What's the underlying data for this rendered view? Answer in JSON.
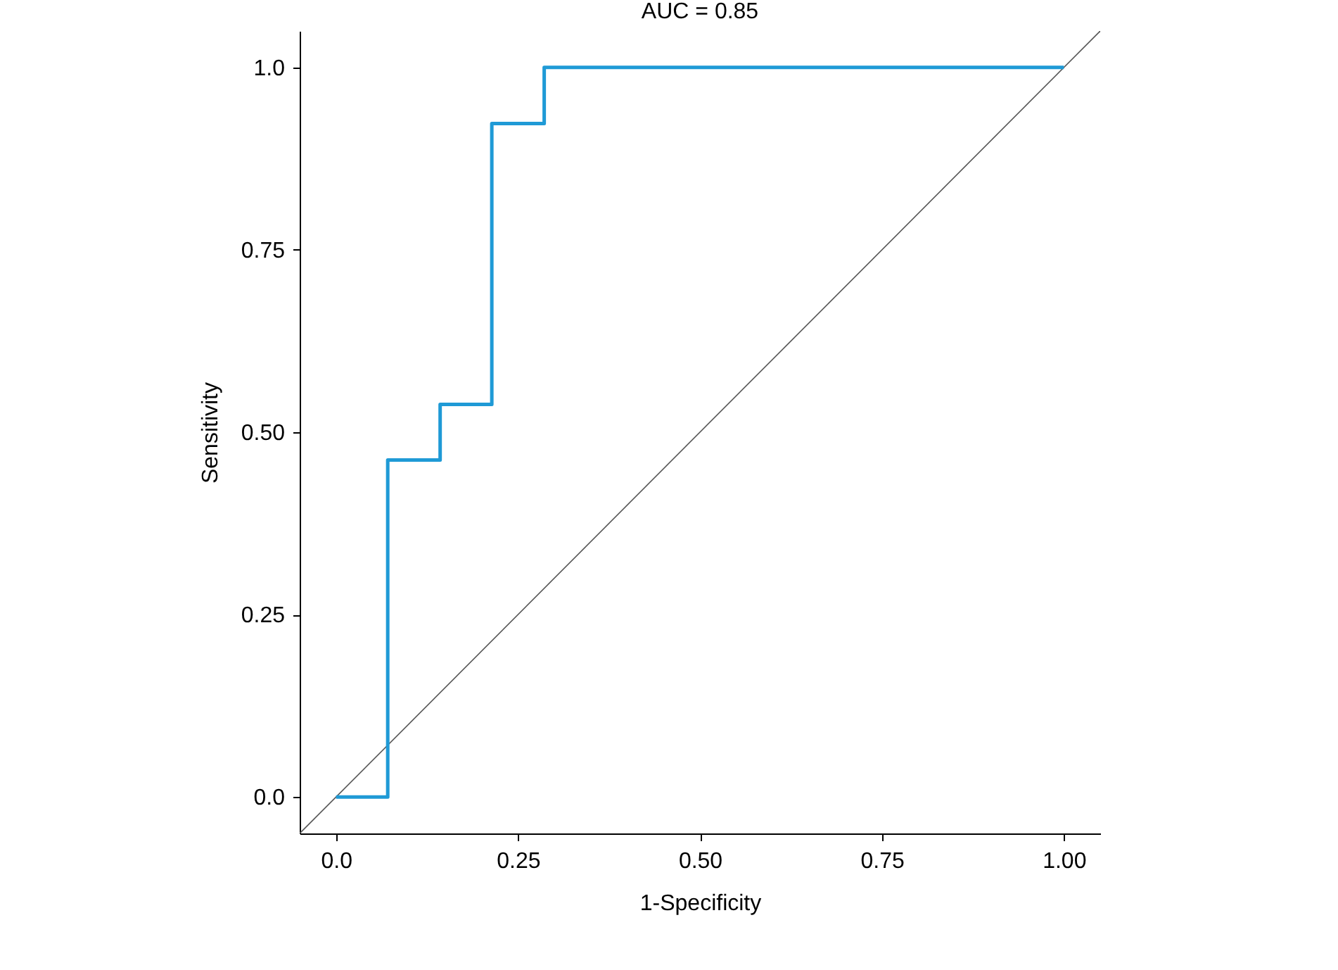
{
  "chart_data": {
    "type": "step",
    "title": "AUC = 0.85",
    "xlabel": "1-Specificity",
    "ylabel": "Sensitivity",
    "xlim": [
      -0.05,
      1.05
    ],
    "ylim": [
      -0.05,
      1.05
    ],
    "xticks": [
      {
        "value": 0,
        "label": "0.0"
      },
      0.25,
      {
        "value": 0.5,
        "label": "0.50"
      },
      0.75,
      {
        "value": 1,
        "label": "1.00"
      }
    ],
    "yticks": [
      {
        "value": 0,
        "label": "0.0"
      },
      0.25,
      {
        "value": 0.5,
        "label": "0.50"
      },
      0.75,
      {
        "value": 1,
        "label": "1.0"
      }
    ],
    "grid": false,
    "legend": false,
    "series": [
      {
        "type": "line",
        "color": "#555555",
        "x": [
          -0.05,
          1.05
        ],
        "values": [
          -0.05,
          1.05
        ]
      },
      {
        "type": "step",
        "color": "#1f9ad6",
        "x": [
          0,
          0.071,
          0.143,
          0.214,
          0.286,
          1
        ],
        "values": [
          0,
          0.462,
          0.538,
          0.923,
          1,
          1
        ]
      }
    ]
  }
}
